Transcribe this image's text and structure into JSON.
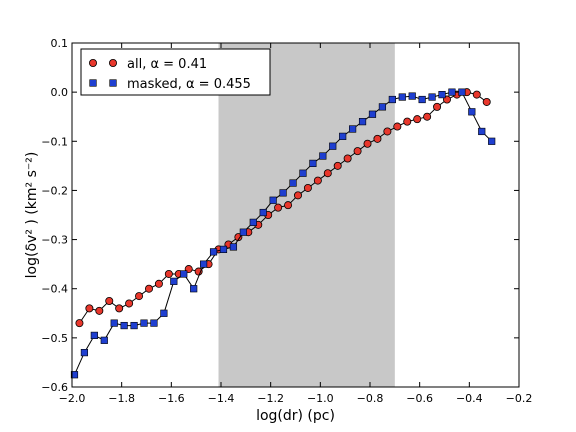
{
  "chart_data": {
    "type": "line",
    "xlabel": "log(dr) (pc)",
    "ylabel": "log(δv² ) (km² s⁻²)",
    "xlim": [
      -2.0,
      -0.2
    ],
    "ylim": [
      -0.6,
      0.1
    ],
    "xticks": [
      "−2.0",
      "−1.8",
      "−1.6",
      "−1.4",
      "−1.2",
      "−1.0",
      "−0.8",
      "−0.6",
      "−0.4",
      "−0.2"
    ],
    "yticks": [
      "−0.6",
      "−0.5",
      "−0.4",
      "−0.3",
      "−0.2",
      "−0.1",
      "0.0",
      "0.1"
    ],
    "shaded_region": [
      -1.41,
      -0.7
    ],
    "legend_position": "top-left",
    "series": [
      {
        "name": "all, α = 0.41",
        "marker": "circle",
        "color": "#e8372c",
        "x": [
          -1.97,
          -1.93,
          -1.89,
          -1.85,
          -1.81,
          -1.77,
          -1.73,
          -1.69,
          -1.65,
          -1.61,
          -1.57,
          -1.53,
          -1.49,
          -1.45,
          -1.41,
          -1.37,
          -1.33,
          -1.29,
          -1.25,
          -1.21,
          -1.17,
          -1.13,
          -1.09,
          -1.05,
          -1.01,
          -0.97,
          -0.93,
          -0.89,
          -0.85,
          -0.81,
          -0.77,
          -0.73,
          -0.69,
          -0.65,
          -0.61,
          -0.57,
          -0.53,
          -0.49,
          -0.45,
          -0.41,
          -0.37,
          -0.33
        ],
        "y": [
          -0.47,
          -0.44,
          -0.445,
          -0.425,
          -0.44,
          -0.43,
          -0.415,
          -0.4,
          -0.39,
          -0.37,
          -0.37,
          -0.36,
          -0.365,
          -0.35,
          -0.32,
          -0.31,
          -0.295,
          -0.285,
          -0.27,
          -0.25,
          -0.235,
          -0.23,
          -0.21,
          -0.195,
          -0.18,
          -0.165,
          -0.15,
          -0.135,
          -0.12,
          -0.105,
          -0.095,
          -0.08,
          -0.07,
          -0.06,
          -0.055,
          -0.05,
          -0.03,
          -0.015,
          -0.005,
          0.0,
          -0.005,
          -0.02
        ]
      },
      {
        "name": "masked, α = 0.455",
        "marker": "square",
        "color": "#1f3fd0",
        "x": [
          -1.99,
          -1.95,
          -1.91,
          -1.87,
          -1.83,
          -1.79,
          -1.75,
          -1.71,
          -1.67,
          -1.63,
          -1.59,
          -1.55,
          -1.51,
          -1.47,
          -1.43,
          -1.39,
          -1.35,
          -1.31,
          -1.27,
          -1.23,
          -1.19,
          -1.15,
          -1.11,
          -1.07,
          -1.03,
          -0.99,
          -0.95,
          -0.91,
          -0.87,
          -0.83,
          -0.79,
          -0.75,
          -0.71,
          -0.67,
          -0.63,
          -0.59,
          -0.55,
          -0.51,
          -0.47,
          -0.43,
          -0.39,
          -0.35,
          -0.31
        ],
        "y": [
          -0.575,
          -0.53,
          -0.495,
          -0.505,
          -0.47,
          -0.475,
          -0.475,
          -0.47,
          -0.47,
          -0.45,
          -0.385,
          -0.37,
          -0.4,
          -0.35,
          -0.325,
          -0.32,
          -0.315,
          -0.285,
          -0.265,
          -0.245,
          -0.22,
          -0.205,
          -0.185,
          -0.165,
          -0.145,
          -0.13,
          -0.11,
          -0.09,
          -0.075,
          -0.06,
          -0.045,
          -0.03,
          -0.015,
          -0.01,
          -0.008,
          -0.015,
          -0.01,
          -0.005,
          0.0,
          0.0,
          -0.04,
          -0.08,
          -0.1
        ]
      }
    ]
  }
}
